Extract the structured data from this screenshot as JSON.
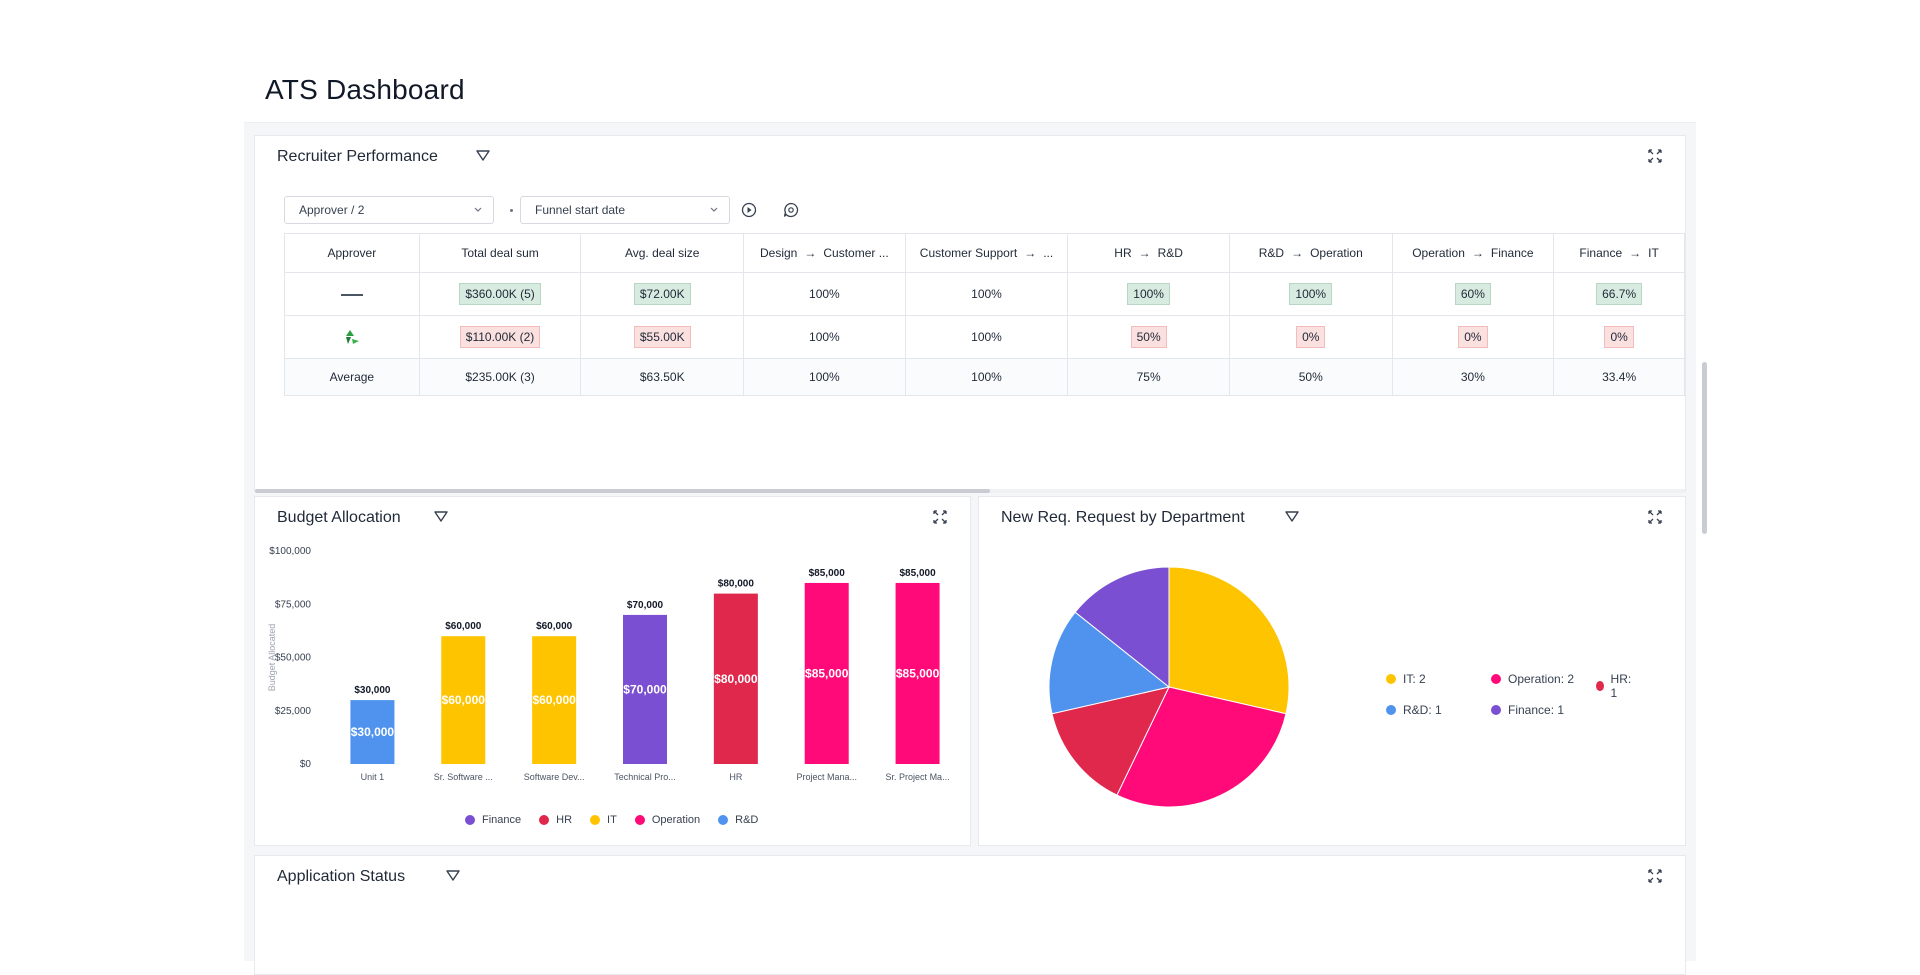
{
  "page": {
    "title": "ATS Dashboard"
  },
  "recruiter_performance": {
    "title": "Recruiter Performance",
    "filters": {
      "approver": "Approver / 2",
      "date": "Funnel start date"
    },
    "columns": [
      {
        "label": "Approver"
      },
      {
        "label": "Total deal sum"
      },
      {
        "label": "Avg. deal size"
      },
      {
        "from": "Design",
        "to": "Customer ..."
      },
      {
        "from": "Customer Support",
        "to": "..."
      },
      {
        "from": "HR",
        "to": "R&D"
      },
      {
        "from": "R&D",
        "to": "Operation"
      },
      {
        "from": "Operation",
        "to": "Finance"
      },
      {
        "from": "Finance",
        "to": "IT"
      }
    ],
    "rows": [
      {
        "approver": "logo-text",
        "cells": [
          {
            "v": "$360.00K (5)",
            "s": "green"
          },
          {
            "v": "$72.00K",
            "s": "green"
          },
          {
            "v": "100%"
          },
          {
            "v": "100%"
          },
          {
            "v": "100%",
            "s": "green"
          },
          {
            "v": "100%",
            "s": "green"
          },
          {
            "v": "60%",
            "s": "green"
          },
          {
            "v": "66.7%",
            "s": "green"
          }
        ]
      },
      {
        "approver": "logo-icon",
        "cells": [
          {
            "v": "$110.00K (2)",
            "s": "red"
          },
          {
            "v": "$55.00K",
            "s": "red"
          },
          {
            "v": "100%"
          },
          {
            "v": "100%"
          },
          {
            "v": "50%",
            "s": "red"
          },
          {
            "v": "0%",
            "s": "red"
          },
          {
            "v": "0%",
            "s": "red"
          },
          {
            "v": "0%",
            "s": "red"
          }
        ]
      },
      {
        "approver": "Average",
        "cells": [
          {
            "v": "$235.00K (3)"
          },
          {
            "v": "$63.50K"
          },
          {
            "v": "100%"
          },
          {
            "v": "100%"
          },
          {
            "v": "75%"
          },
          {
            "v": "50%"
          },
          {
            "v": "30%"
          },
          {
            "v": "33.4%"
          }
        ]
      }
    ]
  },
  "budget_allocation": {
    "title": "Budget Allocation",
    "chart_data": {
      "type": "bar",
      "ylabel": "Budget Allocated",
      "ylim": [
        0,
        100000
      ],
      "yticks": [
        "$0",
        "$25,000",
        "$50,000",
        "$75,000",
        "$100,000"
      ],
      "categories": [
        "Unit 1",
        "Sr. Software ...",
        "Software Dev...",
        "Technical Pro...",
        "HR",
        "Project Mana...",
        "Sr. Project Ma..."
      ],
      "values": [
        30000,
        60000,
        60000,
        70000,
        80000,
        85000,
        85000
      ],
      "labels": [
        "$30,000",
        "$60,000",
        "$60,000",
        "$70,000",
        "$80,000",
        "$85,000",
        "$85,000"
      ],
      "bar_series": [
        "R&D",
        "IT",
        "IT",
        "Finance",
        "HR",
        "Operation",
        "Operation"
      ],
      "legend": [
        {
          "name": "Finance",
          "color": "#7a4fd1"
        },
        {
          "name": "HR",
          "color": "#e0284c"
        },
        {
          "name": "IT",
          "color": "#ffc400"
        },
        {
          "name": "Operation",
          "color": "#ff0a78"
        },
        {
          "name": "R&D",
          "color": "#4f93ee"
        }
      ]
    }
  },
  "new_req": {
    "title": "New Req. Request by Department",
    "chart_data": {
      "type": "pie",
      "slices": [
        {
          "name": "IT",
          "value": 2,
          "label": "IT: 2",
          "color": "#ffc400"
        },
        {
          "name": "Operation",
          "value": 2,
          "label": "Operation: 2",
          "color": "#ff0a78"
        },
        {
          "name": "HR",
          "value": 1,
          "label": "HR: 1",
          "color": "#e0284c"
        },
        {
          "name": "R&D",
          "value": 1,
          "label": "R&D: 1",
          "color": "#4f93ee"
        },
        {
          "name": "Finance",
          "value": 1,
          "label": "Finance: 1",
          "color": "#7a4fd1"
        }
      ]
    }
  },
  "application_status": {
    "title": "Application Status"
  }
}
